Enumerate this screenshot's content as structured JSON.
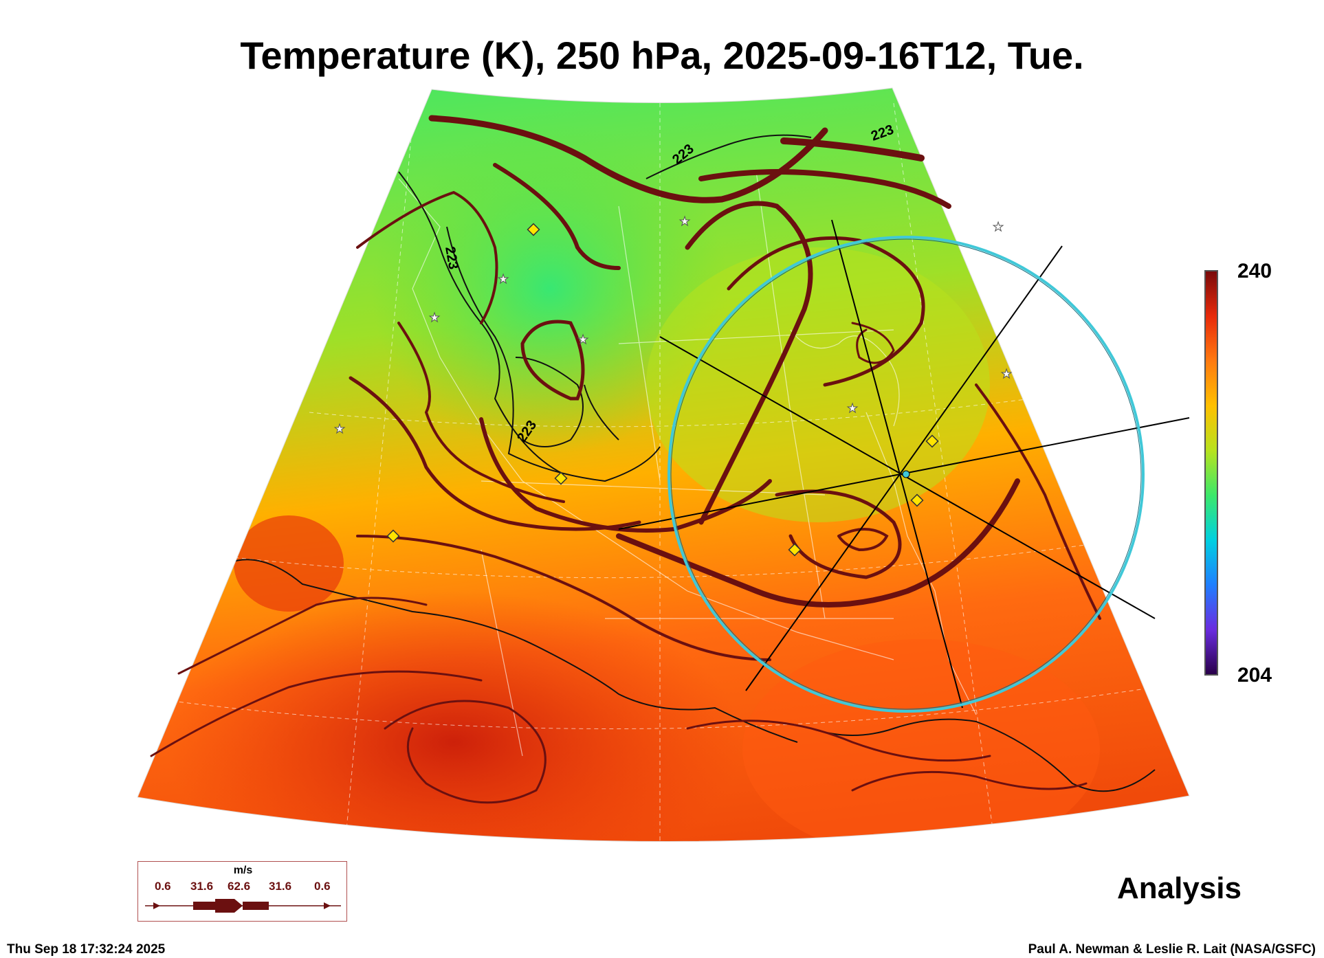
{
  "title": "Temperature (K), 250 hPa, 2025-09-16T12, Tue.",
  "colorbar": {
    "max": "240",
    "min": "204",
    "stops": [
      "#2a004a",
      "#6a2ce0",
      "#1f7fff",
      "#00d0e0",
      "#3ce86a",
      "#b8e21e",
      "#ffc000",
      "#ff7a10",
      "#e82a0a",
      "#7a0a0a"
    ]
  },
  "contour_labels": [
    "223",
    "223",
    "223",
    "223"
  ],
  "legend": {
    "unit": "m/s",
    "values": [
      "0.6",
      "31.6",
      "62.6",
      "31.6",
      "0.6"
    ]
  },
  "analysis_label": "Analysis",
  "timestamp": "Thu Sep 18 17:32:24 2025",
  "credit": "Paul A. Newman & Leslie R. Lait (NASA/GSFC)",
  "colors": {
    "streamline": "#6b1010",
    "ring": "#40c8d8",
    "diamond": "#ffe400",
    "cold": "#3ce86a",
    "warm": "#e83a0a"
  }
}
